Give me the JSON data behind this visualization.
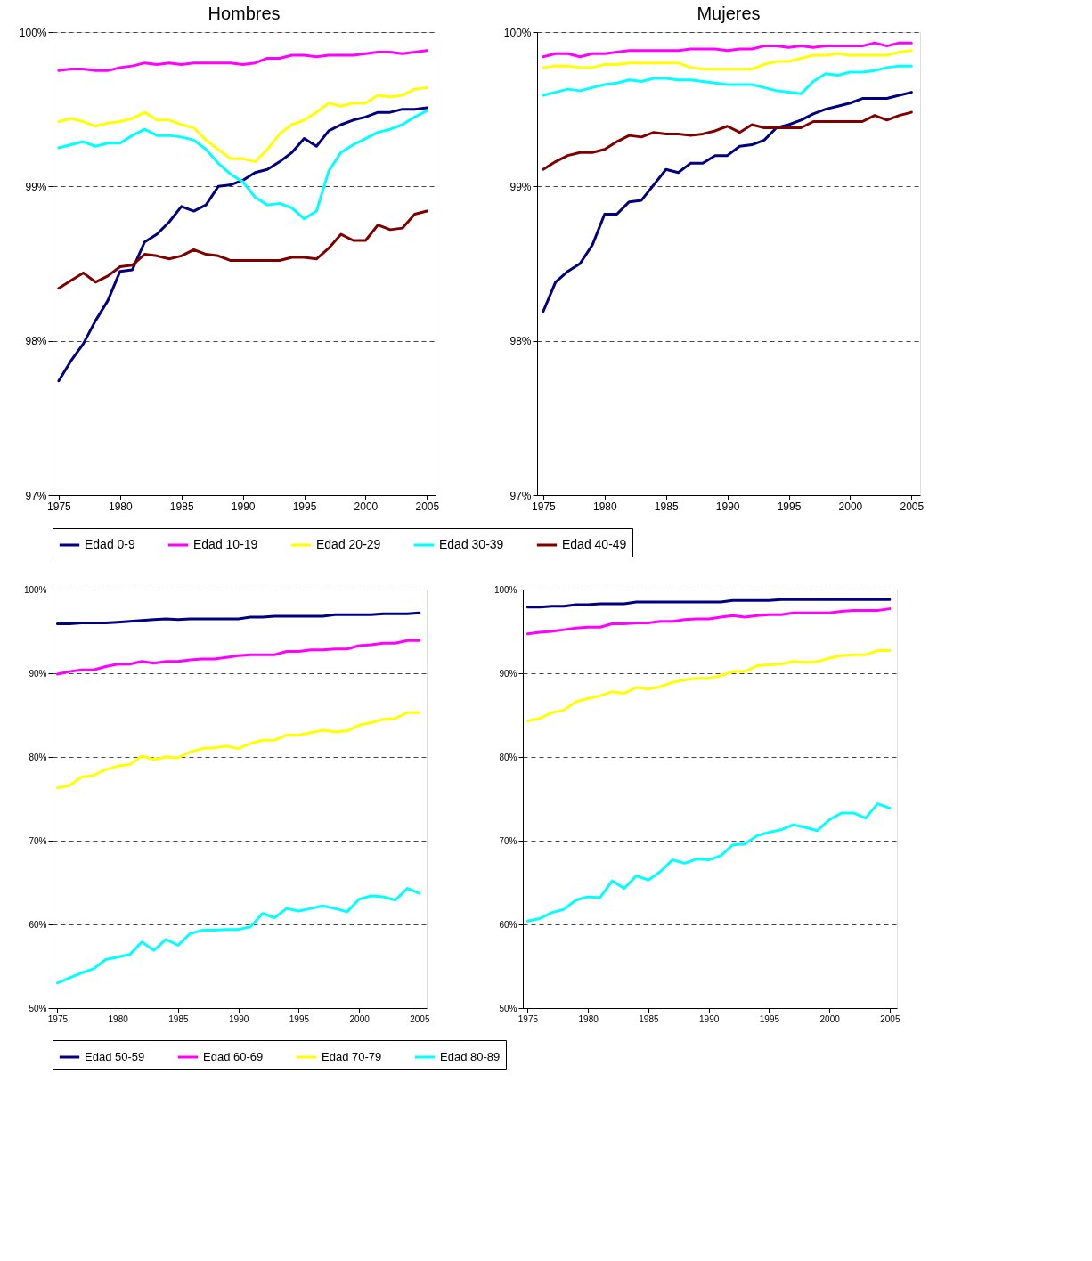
{
  "chart_data": [
    {
      "type": "line",
      "title": "Hombres",
      "x": [
        1975,
        1976,
        1977,
        1978,
        1979,
        1980,
        1981,
        1982,
        1983,
        1984,
        1985,
        1986,
        1987,
        1988,
        1989,
        1990,
        1991,
        1992,
        1993,
        1994,
        1995,
        1996,
        1997,
        1998,
        1999,
        2000,
        2001,
        2002,
        2003,
        2004,
        2005
      ],
      "series": [
        {
          "name": "Edad 0-9",
          "color": "#000080",
          "values": [
            97.74,
            97.87,
            97.98,
            98.13,
            98.26,
            98.45,
            98.46,
            98.64,
            98.69,
            98.77,
            98.87,
            98.84,
            98.88,
            99.0,
            99.01,
            99.04,
            99.09,
            99.11,
            99.16,
            99.22,
            99.31,
            99.26,
            99.36,
            99.4,
            99.43,
            99.45,
            99.48,
            99.48,
            99.5,
            99.5,
            99.51
          ]
        },
        {
          "name": "Edad 10-19",
          "color": "#ff00ff",
          "values": [
            99.75,
            99.76,
            99.76,
            99.75,
            99.75,
            99.77,
            99.78,
            99.8,
            99.79,
            99.8,
            99.79,
            99.8,
            99.8,
            99.8,
            99.8,
            99.79,
            99.8,
            99.83,
            99.83,
            99.85,
            99.85,
            99.84,
            99.85,
            99.85,
            99.85,
            99.86,
            99.87,
            99.87,
            99.86,
            99.87,
            99.88
          ]
        },
        {
          "name": "Edad 20-29",
          "color": "#ffff00",
          "values": [
            99.42,
            99.44,
            99.42,
            99.39,
            99.41,
            99.42,
            99.44,
            99.48,
            99.43,
            99.43,
            99.4,
            99.38,
            99.3,
            99.24,
            99.18,
            99.18,
            99.16,
            99.24,
            99.34,
            99.4,
            99.43,
            99.48,
            99.54,
            99.52,
            99.54,
            99.54,
            99.59,
            99.58,
            99.59,
            99.63,
            99.64
          ]
        },
        {
          "name": "Edad 30-39",
          "color": "#00ffff",
          "values": [
            99.25,
            99.27,
            99.29,
            99.26,
            99.28,
            99.28,
            99.33,
            99.37,
            99.33,
            99.33,
            99.32,
            99.3,
            99.24,
            99.15,
            99.08,
            99.03,
            98.93,
            98.88,
            98.89,
            98.86,
            98.79,
            98.84,
            99.1,
            99.22,
            99.27,
            99.31,
            99.35,
            99.37,
            99.4,
            99.45,
            99.49
          ]
        },
        {
          "name": "Edad 40-49",
          "color": "#800000",
          "values": [
            98.34,
            98.39,
            98.44,
            98.38,
            98.42,
            98.48,
            98.49,
            98.56,
            98.55,
            98.53,
            98.55,
            98.59,
            98.56,
            98.55,
            98.52,
            98.52,
            98.52,
            98.52,
            98.52,
            98.54,
            98.54,
            98.53,
            98.6,
            98.69,
            98.65,
            98.65,
            98.75,
            98.72,
            98.73,
            98.82,
            98.84
          ]
        }
      ],
      "xlim": [
        1974.5,
        2005.7
      ],
      "xticks": [
        1975,
        1980,
        1985,
        1990,
        1995,
        2000,
        2005
      ],
      "ylim": [
        97,
        100
      ],
      "yticks": [
        {
          "value": 97,
          "label": "97%"
        },
        {
          "value": 98,
          "label": "98%"
        },
        {
          "value": 99,
          "label": "99%"
        },
        {
          "value": 100,
          "label": "100%"
        }
      ],
      "grid": "y",
      "legend": "bottom"
    },
    {
      "type": "line",
      "title": "Mujeres",
      "x": [
        1975,
        1976,
        1977,
        1978,
        1979,
        1980,
        1981,
        1982,
        1983,
        1984,
        1985,
        1986,
        1987,
        1988,
        1989,
        1990,
        1991,
        1992,
        1993,
        1994,
        1995,
        1996,
        1997,
        1998,
        1999,
        2000,
        2001,
        2002,
        2003,
        2004,
        2005
      ],
      "series": [
        {
          "name": "Edad 0-9",
          "color": "#000080",
          "values": [
            98.19,
            98.38,
            98.45,
            98.5,
            98.62,
            98.82,
            98.82,
            98.9,
            98.91,
            99.01,
            99.11,
            99.09,
            99.15,
            99.15,
            99.2,
            99.2,
            99.26,
            99.27,
            99.3,
            99.38,
            99.4,
            99.43,
            99.47,
            99.5,
            99.52,
            99.54,
            99.57,
            99.57,
            99.57,
            99.59,
            99.61
          ]
        },
        {
          "name": "Edad 10-19",
          "color": "#ff00ff",
          "values": [
            99.84,
            99.86,
            99.86,
            99.84,
            99.86,
            99.86,
            99.87,
            99.88,
            99.88,
            99.88,
            99.88,
            99.88,
            99.89,
            99.89,
            99.89,
            99.88,
            99.89,
            99.89,
            99.91,
            99.91,
            99.9,
            99.91,
            99.9,
            99.91,
            99.91,
            99.91,
            99.91,
            99.93,
            99.91,
            99.93,
            99.93
          ]
        },
        {
          "name": "Edad 20-29",
          "color": "#ffff00",
          "values": [
            99.77,
            99.78,
            99.78,
            99.77,
            99.77,
            99.79,
            99.79,
            99.8,
            99.8,
            99.8,
            99.8,
            99.8,
            99.77,
            99.76,
            99.76,
            99.76,
            99.76,
            99.76,
            99.79,
            99.81,
            99.81,
            99.83,
            99.85,
            99.85,
            99.86,
            99.85,
            99.85,
            99.85,
            99.85,
            99.87,
            99.88
          ]
        },
        {
          "name": "Edad 30-39",
          "color": "#00ffff",
          "values": [
            99.59,
            99.61,
            99.63,
            99.62,
            99.64,
            99.66,
            99.67,
            99.69,
            99.68,
            99.7,
            99.7,
            99.69,
            99.69,
            99.68,
            99.67,
            99.66,
            99.66,
            99.66,
            99.64,
            99.62,
            99.61,
            99.6,
            99.68,
            99.73,
            99.72,
            99.74,
            99.74,
            99.75,
            99.77,
            99.78,
            99.78
          ]
        },
        {
          "name": "Edad 40-49",
          "color": "#800000",
          "values": [
            99.11,
            99.16,
            99.2,
            99.22,
            99.22,
            99.24,
            99.29,
            99.33,
            99.32,
            99.35,
            99.34,
            99.34,
            99.33,
            99.34,
            99.36,
            99.39,
            99.35,
            99.4,
            99.38,
            99.38,
            99.38,
            99.38,
            99.42,
            99.42,
            99.42,
            99.42,
            99.42,
            99.46,
            99.43,
            99.46,
            99.48
          ]
        }
      ],
      "xlim": [
        1974.5,
        2005.7
      ],
      "xticks": [
        1975,
        1980,
        1985,
        1990,
        1995,
        2000,
        2005
      ],
      "ylim": [
        97,
        100
      ],
      "yticks": [
        {
          "value": 97,
          "label": "97%"
        },
        {
          "value": 98,
          "label": "98%"
        },
        {
          "value": 99,
          "label": "99%"
        },
        {
          "value": 100,
          "label": "100%"
        }
      ],
      "grid": "y",
      "legend": "bottom"
    },
    {
      "type": "line",
      "x": [
        1975,
        1976,
        1977,
        1978,
        1979,
        1980,
        1981,
        1982,
        1983,
        1984,
        1985,
        1986,
        1987,
        1988,
        1989,
        1990,
        1991,
        1992,
        1993,
        1994,
        1995,
        1996,
        1997,
        1998,
        1999,
        2000,
        2001,
        2002,
        2003,
        2004,
        2005
      ],
      "series": [
        {
          "name": "Edad 50-59",
          "color": "#000080",
          "values": [
            95.9,
            95.9,
            96.0,
            96.0,
            96.0,
            96.1,
            96.2,
            96.3,
            96.4,
            96.5,
            96.4,
            96.5,
            96.5,
            96.5,
            96.5,
            96.5,
            96.7,
            96.7,
            96.8,
            96.8,
            96.8,
            96.8,
            96.8,
            97.0,
            97.0,
            97.0,
            97.0,
            97.1,
            97.1,
            97.1,
            97.2
          ]
        },
        {
          "name": "Edad 60-69",
          "color": "#ff00ff",
          "values": [
            89.9,
            90.2,
            90.4,
            90.4,
            90.8,
            91.1,
            91.1,
            91.4,
            91.2,
            91.4,
            91.4,
            91.6,
            91.7,
            91.7,
            91.9,
            92.1,
            92.2,
            92.2,
            92.2,
            92.6,
            92.6,
            92.8,
            92.8,
            92.9,
            92.9,
            93.3,
            93.4,
            93.6,
            93.6,
            93.9,
            93.9
          ]
        },
        {
          "name": "Edad 70-79",
          "color": "#ffff00",
          "values": [
            76.3,
            76.6,
            77.6,
            77.8,
            78.5,
            78.9,
            79.1,
            80.1,
            79.7,
            80.0,
            79.9,
            80.6,
            81.0,
            81.1,
            81.3,
            81.0,
            81.6,
            82.0,
            82.0,
            82.6,
            82.6,
            82.9,
            83.2,
            83.0,
            83.1,
            83.8,
            84.1,
            84.5,
            84.6,
            85.3,
            85.3
          ]
        },
        {
          "name": "Edad 80-89",
          "color": "#00ffff",
          "values": [
            53.0,
            53.6,
            54.2,
            54.7,
            55.8,
            56.1,
            56.4,
            57.9,
            56.9,
            58.2,
            57.5,
            58.9,
            59.3,
            59.3,
            59.4,
            59.4,
            59.7,
            61.3,
            60.8,
            61.9,
            61.6,
            61.9,
            62.2,
            61.9,
            61.5,
            63.0,
            63.4,
            63.3,
            62.9,
            64.3,
            63.7
          ]
        }
      ],
      "xlim": [
        1974.6,
        2005.6
      ],
      "xticks": [
        1975,
        1980,
        1985,
        1990,
        1995,
        2000,
        2005
      ],
      "ylim": [
        50,
        100
      ],
      "yticks": [
        {
          "value": 50,
          "label": "50%"
        },
        {
          "value": 60,
          "label": "60%"
        },
        {
          "value": 70,
          "label": "70%"
        },
        {
          "value": 80,
          "label": "80%"
        },
        {
          "value": 90,
          "label": "90%"
        },
        {
          "value": 100,
          "label": "100%"
        }
      ],
      "grid": "y",
      "legend": "bottom"
    },
    {
      "type": "line",
      "x": [
        1975,
        1976,
        1977,
        1978,
        1979,
        1980,
        1981,
        1982,
        1983,
        1984,
        1985,
        1986,
        1987,
        1988,
        1989,
        1990,
        1991,
        1992,
        1993,
        1994,
        1995,
        1996,
        1997,
        1998,
        1999,
        2000,
        2001,
        2002,
        2003,
        2004,
        2005
      ],
      "series": [
        {
          "name": "Edad 50-59",
          "color": "#000080",
          "values": [
            97.9,
            97.9,
            98.0,
            98.0,
            98.2,
            98.2,
            98.3,
            98.3,
            98.3,
            98.5,
            98.5,
            98.5,
            98.5,
            98.5,
            98.5,
            98.5,
            98.5,
            98.7,
            98.7,
            98.7,
            98.7,
            98.8,
            98.8,
            98.8,
            98.8,
            98.8,
            98.8,
            98.8,
            98.8,
            98.8,
            98.8
          ]
        },
        {
          "name": "Edad 60-69",
          "color": "#ff00ff",
          "values": [
            94.7,
            94.9,
            95.0,
            95.2,
            95.4,
            95.5,
            95.5,
            95.9,
            95.9,
            96.0,
            96.0,
            96.2,
            96.2,
            96.4,
            96.5,
            96.5,
            96.7,
            96.9,
            96.7,
            96.9,
            97.0,
            97.0,
            97.2,
            97.2,
            97.2,
            97.2,
            97.4,
            97.5,
            97.5,
            97.5,
            97.7
          ]
        },
        {
          "name": "Edad 70-79",
          "color": "#ffff00",
          "values": [
            84.3,
            84.6,
            85.3,
            85.6,
            86.6,
            87.0,
            87.3,
            87.8,
            87.6,
            88.3,
            88.1,
            88.4,
            88.9,
            89.2,
            89.4,
            89.4,
            89.7,
            90.2,
            90.2,
            90.9,
            91.0,
            91.1,
            91.4,
            91.3,
            91.4,
            91.8,
            92.1,
            92.2,
            92.2,
            92.7,
            92.7
          ]
        },
        {
          "name": "Edad 80-89",
          "color": "#00ffff",
          "values": [
            60.4,
            60.7,
            61.4,
            61.8,
            62.9,
            63.3,
            63.2,
            65.2,
            64.3,
            65.8,
            65.3,
            66.3,
            67.7,
            67.3,
            67.8,
            67.7,
            68.2,
            69.5,
            69.6,
            70.6,
            71.0,
            71.3,
            71.9,
            71.6,
            71.2,
            72.5,
            73.3,
            73.3,
            72.7,
            74.4,
            73.9
          ]
        }
      ],
      "xlim": [
        1974.6,
        2005.6
      ],
      "xticks": [
        1975,
        1980,
        1985,
        1990,
        1995,
        2000,
        2005
      ],
      "ylim": [
        50,
        100
      ],
      "yticks": [
        {
          "value": 50,
          "label": "50%"
        },
        {
          "value": 60,
          "label": "60%"
        },
        {
          "value": 70,
          "label": "70%"
        },
        {
          "value": 80,
          "label": "80%"
        },
        {
          "value": 90,
          "label": "90%"
        },
        {
          "value": 100,
          "label": "100%"
        }
      ],
      "grid": "y",
      "legend": "bottom"
    }
  ]
}
